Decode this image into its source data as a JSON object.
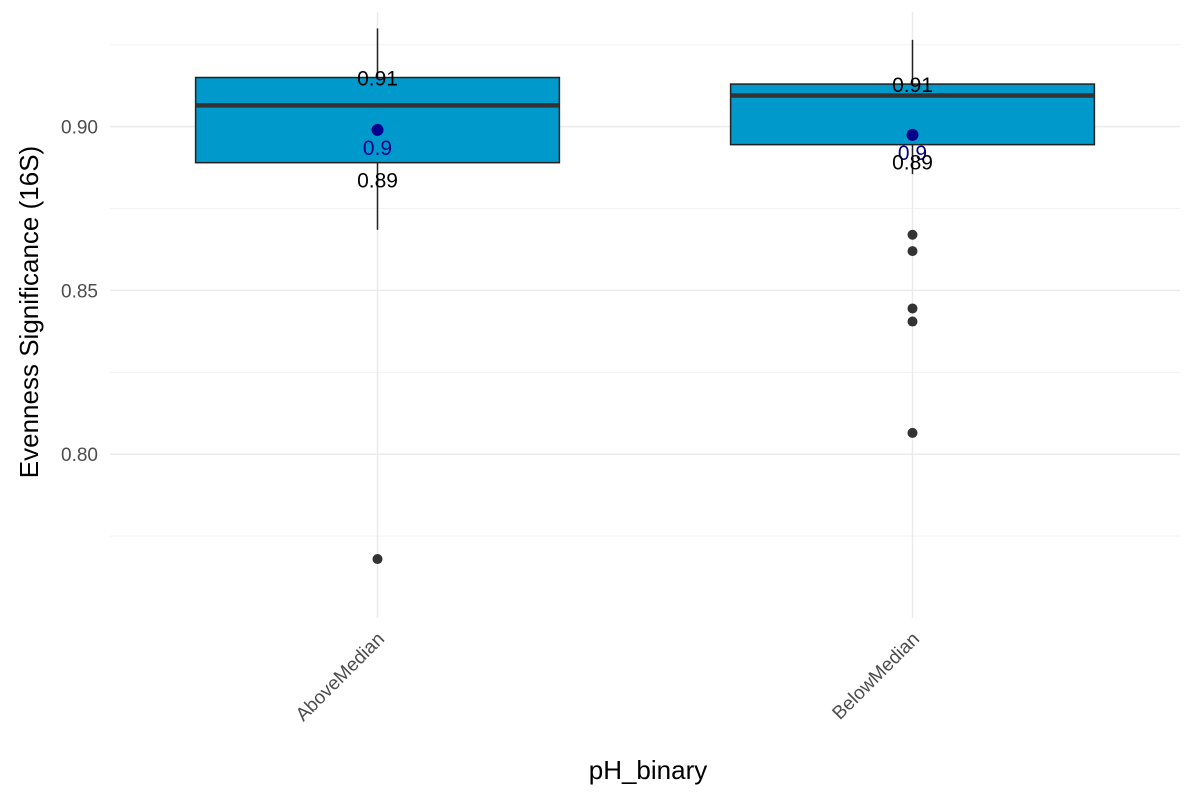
{
  "chart_data": {
    "type": "boxplot",
    "xlabel": "pH_binary",
    "ylabel": "Evenness Significance (16S)",
    "ylim": [
      0.75,
      0.935
    ],
    "yticks": [
      0.8,
      0.85,
      0.9
    ],
    "yticklabels": [
      "0.80",
      "0.85",
      "0.90"
    ],
    "grid": true,
    "categories": [
      "AboveMedian",
      "BelowMedian"
    ],
    "boxes": [
      {
        "category": "AboveMedian",
        "q1": 0.889,
        "median": 0.9065,
        "q3": 0.915,
        "whisker_low": 0.8685,
        "whisker_high": 0.93,
        "mean": 0.899,
        "outliers": [
          0.768
        ],
        "label_q3": "0.91",
        "label_mean": "0.9",
        "label_q1": "0.89"
      },
      {
        "category": "BelowMedian",
        "q1": 0.8945,
        "median": 0.9095,
        "q3": 0.913,
        "whisker_low": 0.8855,
        "whisker_high": 0.9265,
        "mean": 0.8975,
        "outliers": [
          0.867,
          0.862,
          0.8445,
          0.8405,
          0.8065
        ],
        "label_q3": "0.91",
        "label_mean": "0.9",
        "label_q1": "0.89"
      }
    ],
    "colors": {
      "box_fill": "#0099cc",
      "box_border": "#222222",
      "median_line": "#333333",
      "outlier": "#333333",
      "mean_point": "#00008b",
      "mean_label": "#00008b",
      "stat_label": "#000000",
      "grid_major": "#ebebeb",
      "grid_minor": "#f3f3f3"
    }
  }
}
